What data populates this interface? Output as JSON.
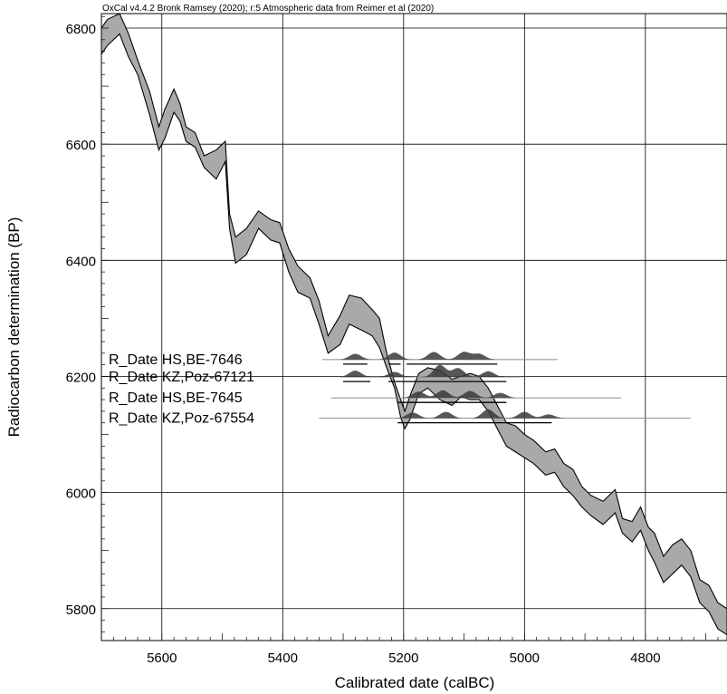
{
  "chart_data": {
    "type": "line",
    "header": "OxCal v4.4.2 Bronk Ramsey (2020); r:5 Atmospheric data from Reimer et al (2020)",
    "xlabel": "Calibrated date (calBC)",
    "ylabel": "Radiocarbon determination (BP)",
    "xlim": [
      5700,
      4665
    ],
    "ylim": [
      5745,
      6825
    ],
    "x_ticks": [
      5600,
      5400,
      5200,
      5000,
      4800
    ],
    "y_ticks": [
      6800,
      6600,
      6400,
      6200,
      6000,
      5800
    ],
    "grid": true,
    "series": [
      {
        "x": [
          5700,
          5690,
          5670,
          5655,
          5640,
          5620,
          5605,
          5595,
          5580,
          5570,
          5560,
          5545,
          5530,
          5510,
          5495,
          5488,
          5478,
          5460,
          5440,
          5420,
          5405,
          5390,
          5375,
          5355,
          5340,
          5325,
          5305,
          5290,
          5270,
          5252,
          5240,
          5228,
          5215,
          5205,
          5198,
          5190,
          5175,
          5160,
          5140,
          5120,
          5105,
          5090,
          5075,
          5060,
          5045,
          5030,
          5015,
          5000,
          4985,
          4965,
          4950,
          4935,
          4920,
          4905,
          4890,
          4870,
          4850,
          4838,
          4822,
          4808,
          4795,
          4785,
          4770,
          4755,
          4740,
          4725,
          4710,
          4695,
          4680,
          4665
        ],
        "y_upper": [
          6800,
          6815,
          6825,
          6790,
          6745,
          6690,
          6630,
          6660,
          6695,
          6670,
          6630,
          6620,
          6580,
          6590,
          6605,
          6480,
          6440,
          6455,
          6485,
          6470,
          6465,
          6420,
          6390,
          6370,
          6330,
          6270,
          6305,
          6340,
          6335,
          6315,
          6300,
          6240,
          6190,
          6160,
          6140,
          6165,
          6205,
          6215,
          6210,
          6195,
          6200,
          6205,
          6200,
          6180,
          6150,
          6120,
          6115,
          6100,
          6090,
          6070,
          6075,
          6050,
          6040,
          6010,
          5995,
          5985,
          6005,
          5955,
          5950,
          5975,
          5940,
          5930,
          5890,
          5910,
          5920,
          5900,
          5850,
          5840,
          5810,
          5800
        ],
        "y_lower": [
          6755,
          6770,
          6790,
          6750,
          6720,
          6650,
          6590,
          6610,
          6655,
          6640,
          6605,
          6595,
          6560,
          6540,
          6570,
          6455,
          6395,
          6410,
          6455,
          6435,
          6430,
          6380,
          6345,
          6335,
          6290,
          6240,
          6255,
          6290,
          6280,
          6270,
          6250,
          6215,
          6180,
          6130,
          6110,
          6125,
          6170,
          6180,
          6160,
          6150,
          6165,
          6160,
          6160,
          6140,
          6110,
          6080,
          6070,
          6060,
          6050,
          6030,
          6035,
          6010,
          5995,
          5975,
          5960,
          5945,
          5965,
          5930,
          5915,
          5935,
          5900,
          5880,
          5845,
          5860,
          5875,
          5855,
          5810,
          5795,
          5765,
          5755
        ]
      }
    ],
    "dates": [
      {
        "label": "R_Date HS,BE-7646",
        "y": 6229,
        "range": [
          5335,
          4945
        ],
        "bars": [
          [
            5300,
            5260
          ],
          [
            5225,
            5205
          ],
          [
            5195,
            5045
          ]
        ],
        "peaks": [
          [
            5280,
            0.45
          ],
          [
            5215,
            0.55
          ],
          [
            5150,
            0.6
          ],
          [
            5100,
            0.6
          ],
          [
            5075,
            0.45
          ]
        ]
      },
      {
        "label": "R_Date KZ,Poz-67121",
        "y": 6199,
        "range": [
          5305,
          5005
        ],
        "bars": [
          [
            5300,
            5255
          ],
          [
            5225,
            5030
          ]
        ],
        "peaks": [
          [
            5280,
            0.5
          ],
          [
            5215,
            0.4
          ],
          [
            5140,
            0.95
          ],
          [
            5110,
            0.7
          ],
          [
            5060,
            0.45
          ]
        ]
      },
      {
        "label": "R_Date HS,BE-7645",
        "y": 6163,
        "range": [
          5320,
          4840
        ],
        "bars": [
          [
            5210,
            5030
          ]
        ],
        "peaks": [
          [
            5175,
            0.5
          ],
          [
            5135,
            0.6
          ],
          [
            5090,
            0.55
          ],
          [
            5040,
            0.4
          ]
        ]
      },
      {
        "label": "R_Date KZ,Poz-67554",
        "y": 6128,
        "range": [
          5340,
          4725
        ],
        "bars": [
          [
            5210,
            4955
          ]
        ],
        "peaks": [
          [
            5185,
            0.45
          ],
          [
            5130,
            0.5
          ],
          [
            5060,
            0.7
          ],
          [
            5000,
            0.5
          ],
          [
            4960,
            0.3
          ]
        ]
      }
    ]
  }
}
